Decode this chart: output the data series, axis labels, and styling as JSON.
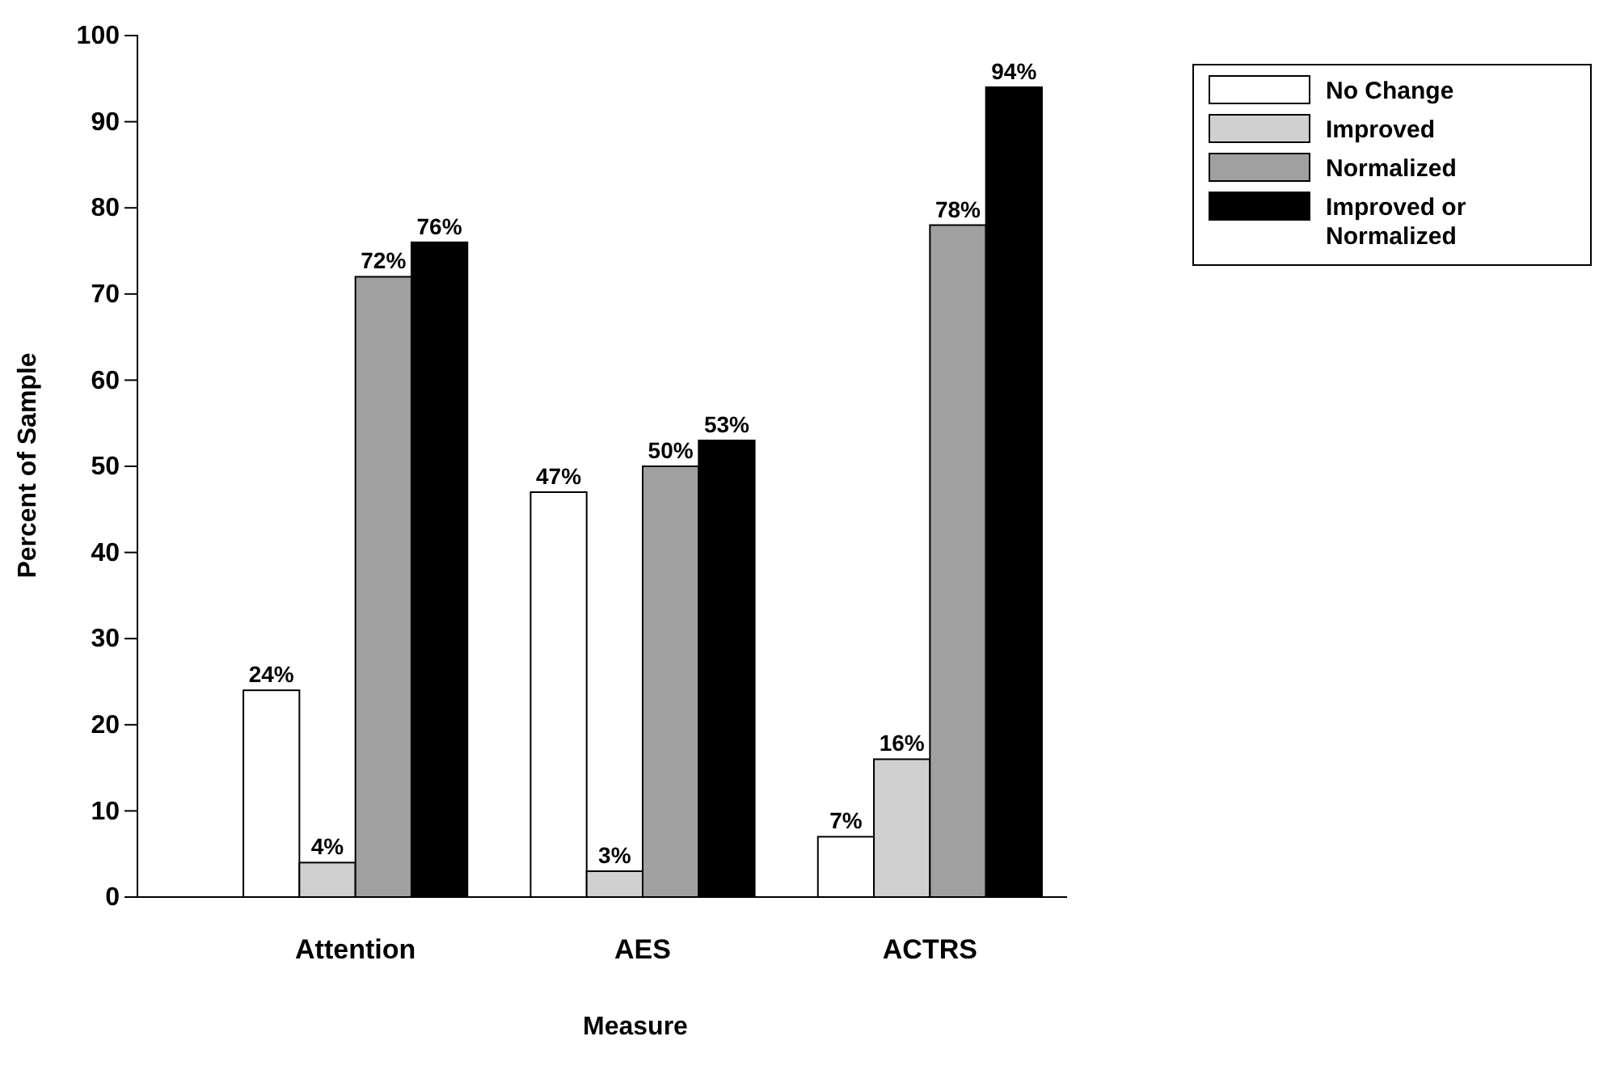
{
  "chart_data": {
    "type": "bar",
    "xlabel": "Measure",
    "ylabel": "Percent of Sample",
    "categories": [
      "Attention",
      "AES",
      "ACTRS"
    ],
    "series": [
      {
        "name": "No Change",
        "color": "#ffffff",
        "values": [
          24,
          47,
          7
        ],
        "value_labels": [
          "24%",
          "47%",
          "7%"
        ]
      },
      {
        "name": "Improved",
        "color": "#d0d0d0",
        "values": [
          4,
          3,
          16
        ],
        "value_labels": [
          "4%",
          "3%",
          "16%"
        ]
      },
      {
        "name": "Normalized",
        "color": "#a0a0a0",
        "values": [
          72,
          50,
          78
        ],
        "value_labels": [
          "72%",
          "50%",
          "78%"
        ]
      },
      {
        "name": "Improved or Normalized",
        "color": "#000000",
        "values": [
          76,
          53,
          94
        ],
        "value_labels": [
          "76%",
          "53%",
          "94%"
        ]
      }
    ],
    "ylim": [
      0,
      100
    ],
    "yticks": [
      0,
      10,
      20,
      30,
      40,
      50,
      60,
      70,
      80,
      90,
      100
    ],
    "grid": false,
    "legend": "top right"
  }
}
